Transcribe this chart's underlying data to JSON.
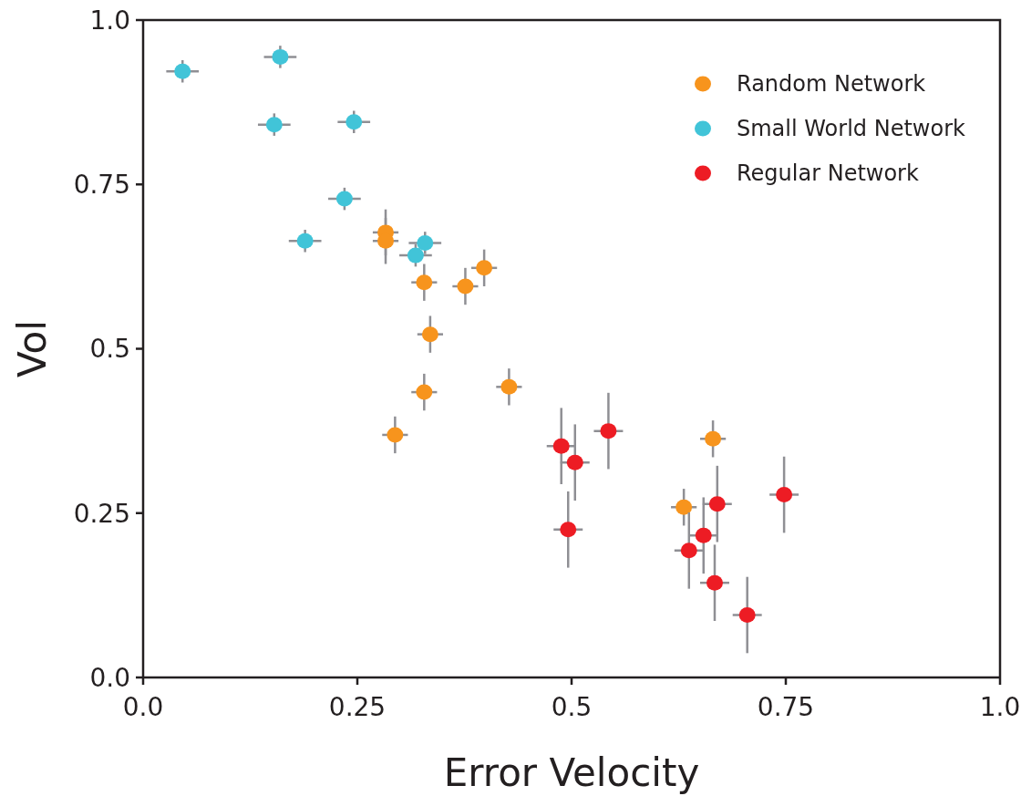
{
  "chart_data": {
    "type": "scatter",
    "xlabel": "Error Velocity",
    "ylabel": "Vol",
    "xlim": [
      0,
      1
    ],
    "ylim": [
      0,
      1
    ],
    "xticks": [
      {
        "value": 0,
        "label": "0.0"
      },
      0.25,
      0.5,
      0.75,
      {
        "value": 1,
        "label": "1.0"
      }
    ],
    "yticks": [
      {
        "value": 0,
        "label": "0.0"
      },
      0.25,
      0.5,
      0.75,
      {
        "value": 1,
        "label": "1.0"
      }
    ],
    "legend": "top right",
    "marker": "circle",
    "grid": false,
    "series": [
      {
        "name": "Random Network",
        "color": "#f7941d",
        "x": [
          0.283,
          0.283,
          0.328,
          0.376,
          0.398,
          0.335,
          0.328,
          0.427,
          0.294,
          0.665,
          0.631
        ],
        "values": [
          0.677,
          0.664,
          0.601,
          0.595,
          0.623,
          0.522,
          0.434,
          0.442,
          0.369,
          0.363,
          0.259
        ],
        "errors": [
          0.035,
          0.035,
          0.028,
          0.028,
          0.028,
          0.028,
          0.028,
          0.028,
          0.028,
          0.028,
          0.028
        ],
        "xerrors": [
          0.015,
          0.015,
          0.015,
          0.015,
          0.015,
          0.015,
          0.015,
          0.015,
          0.015,
          0.015,
          0.015
        ]
      },
      {
        "name": "Small World Network",
        "color": "#41c4d8",
        "x": [
          0.046,
          0.16,
          0.153,
          0.246,
          0.235,
          0.189,
          0.329,
          0.318
        ],
        "values": [
          0.922,
          0.944,
          0.841,
          0.845,
          0.728,
          0.664,
          0.661,
          0.642
        ],
        "errors": [
          0.017,
          0.017,
          0.017,
          0.017,
          0.017,
          0.017,
          0.017,
          0.017
        ],
        "xerrors": [
          0.019,
          0.019,
          0.019,
          0.019,
          0.019,
          0.019,
          0.019,
          0.019
        ]
      },
      {
        "name": "Regular Network",
        "color": "#ed1c24",
        "x": [
          0.488,
          0.504,
          0.543,
          0.496,
          0.67,
          0.748,
          0.654,
          0.637,
          0.667,
          0.705
        ],
        "values": [
          0.352,
          0.327,
          0.375,
          0.225,
          0.264,
          0.278,
          0.216,
          0.193,
          0.144,
          0.095
        ],
        "errors": [
          0.058,
          0.058,
          0.058,
          0.058,
          0.058,
          0.058,
          0.058,
          0.058,
          0.058,
          0.058
        ],
        "xerrors": [
          0.017,
          0.017,
          0.017,
          0.017,
          0.017,
          0.017,
          0.017,
          0.017,
          0.017,
          0.017
        ]
      }
    ]
  }
}
